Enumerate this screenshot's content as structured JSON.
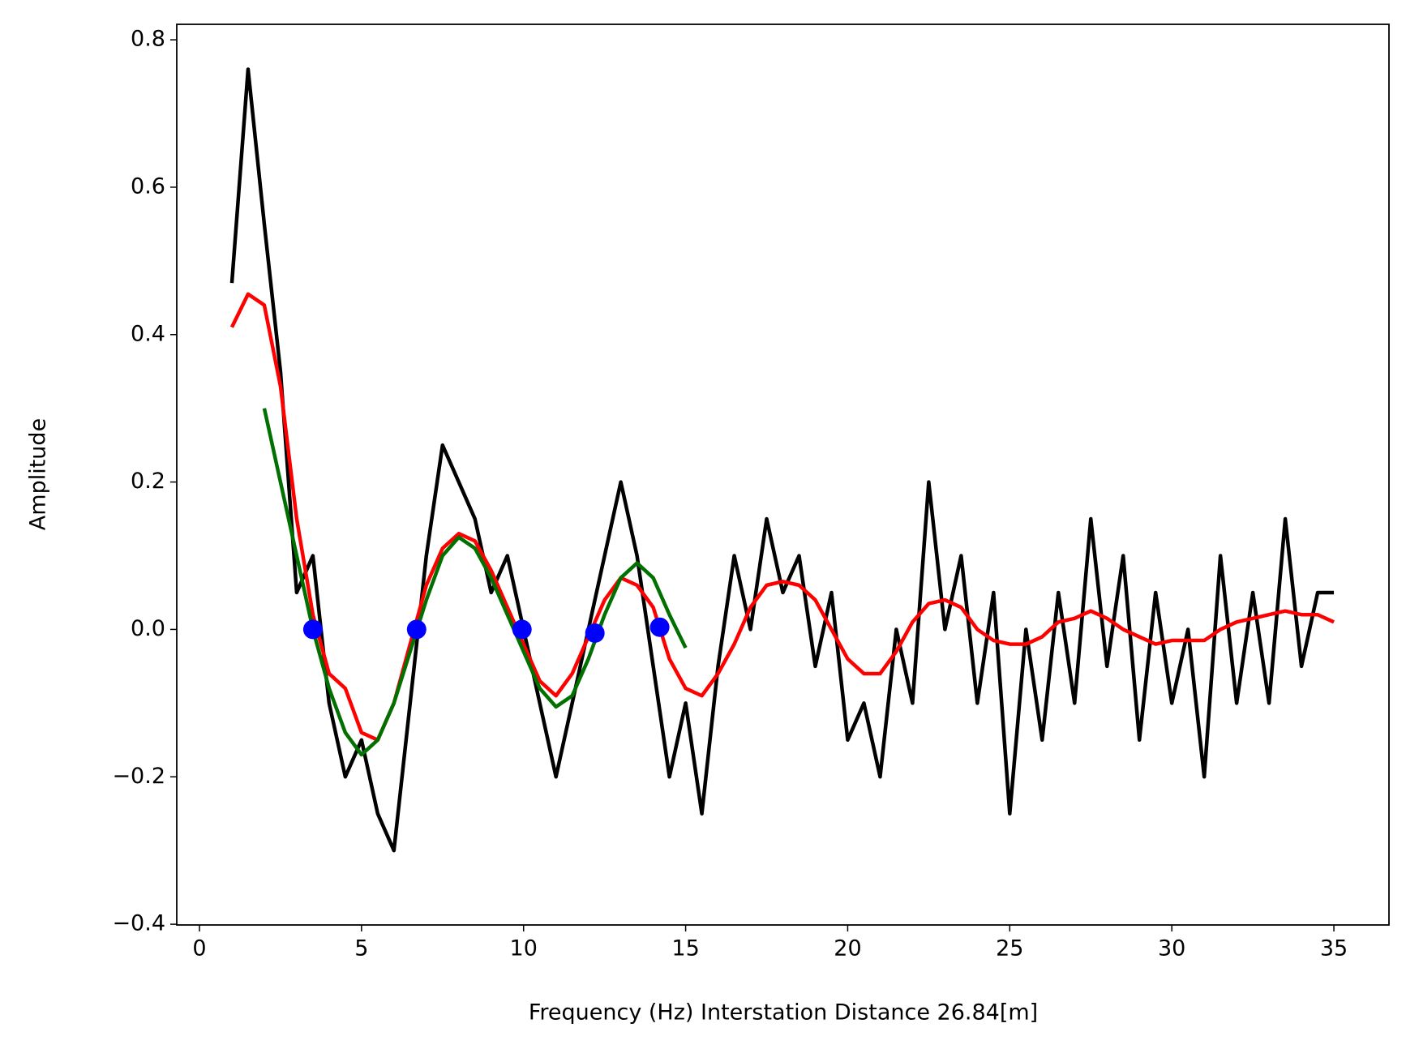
{
  "chart_data": {
    "type": "line",
    "x_label": "Frequency (Hz)  Interstation Distance 26.84[m]",
    "y_label": "Amplitude",
    "xlim": [
      -0.7,
      36.7
    ],
    "ylim": [
      -0.401,
      0.821
    ],
    "xticks": [
      0,
      5,
      10,
      15,
      20,
      25,
      30,
      35
    ],
    "yticks": [
      {
        "value": -0.4,
        "label": "−0.4"
      },
      {
        "value": -0.2,
        "label": "−0.2"
      },
      {
        "value": 0,
        "label": "0.0"
      },
      0.2,
      0.4,
      0.6,
      0.8
    ],
    "grid": false,
    "series": [
      {
        "kind": "line",
        "color": "#000000",
        "x": [
          1,
          1.5,
          2,
          2.5,
          3,
          3.5,
          4,
          4.5,
          5,
          5.5,
          6,
          6.5,
          7,
          7.5,
          8,
          8.5,
          9,
          9.5,
          10,
          10.5,
          11,
          11.5,
          12,
          12.5,
          13,
          13.5,
          14,
          14.5,
          15,
          15.5,
          16,
          16.5,
          17,
          17.5,
          18,
          18.5,
          19,
          19.5,
          20,
          20.5,
          21,
          21.5,
          22,
          22.5,
          23,
          23.5,
          24,
          24.5,
          25,
          25.5,
          26,
          26.5,
          27,
          27.5,
          28,
          28.5,
          29,
          29.5,
          30,
          30.5,
          31,
          31.5,
          32,
          32.5,
          33,
          33.5,
          34,
          34.5,
          35
        ],
        "values": [
          0.47,
          0.76,
          0.55,
          0.35,
          0.05,
          0.1,
          -0.1,
          -0.2,
          -0.15,
          -0.25,
          -0.3,
          -0.1,
          0.1,
          0.25,
          0.2,
          0.15,
          0.05,
          0.1,
          0.0,
          -0.1,
          -0.2,
          -0.1,
          0.0,
          0.1,
          0.2,
          0.1,
          -0.05,
          -0.2,
          -0.1,
          -0.25,
          -0.05,
          0.1,
          0.0,
          0.15,
          0.05,
          0.1,
          -0.05,
          0.05,
          -0.15,
          -0.1,
          -0.2,
          0.0,
          -0.1,
          0.2,
          0.0,
          0.1,
          -0.1,
          0.05,
          -0.25,
          0.0,
          -0.15,
          0.05,
          -0.1,
          0.15,
          -0.05,
          0.1,
          -0.15,
          0.05,
          -0.1,
          0.0,
          -0.2,
          0.1,
          -0.1,
          0.05,
          -0.1,
          0.15,
          -0.05,
          0.05,
          0.05
        ]
      },
      {
        "kind": "line",
        "color": "#ff0000",
        "x": [
          1,
          1.5,
          2,
          2.5,
          3,
          3.5,
          4,
          4.5,
          5,
          5.5,
          6,
          6.5,
          7,
          7.5,
          8,
          8.5,
          9,
          9.5,
          10,
          10.5,
          11,
          11.5,
          12,
          12.5,
          13,
          13.5,
          14,
          14.5,
          15,
          15.5,
          16,
          16.5,
          17,
          17.5,
          18,
          18.5,
          19,
          19.5,
          20,
          20.5,
          21,
          21.5,
          22,
          22.5,
          23,
          23.5,
          24,
          24.5,
          25,
          25.5,
          26,
          26.5,
          27,
          27.5,
          28,
          28.5,
          29,
          29.5,
          30,
          30.5,
          31,
          31.5,
          32,
          32.5,
          33,
          33.5,
          34,
          34.5,
          35
        ],
        "values": [
          0.41,
          0.455,
          0.44,
          0.33,
          0.15,
          0.02,
          -0.06,
          -0.08,
          -0.14,
          -0.15,
          -0.1,
          -0.02,
          0.06,
          0.11,
          0.13,
          0.12,
          0.08,
          0.03,
          -0.02,
          -0.07,
          -0.09,
          -0.06,
          -0.01,
          0.04,
          0.07,
          0.06,
          0.03,
          -0.04,
          -0.08,
          -0.09,
          -0.06,
          -0.02,
          0.03,
          0.06,
          0.065,
          0.06,
          0.04,
          0.0,
          -0.04,
          -0.06,
          -0.06,
          -0.03,
          0.01,
          0.035,
          0.04,
          0.03,
          0.0,
          -0.015,
          -0.02,
          -0.02,
          -0.01,
          0.01,
          0.015,
          0.025,
          0.015,
          0.0,
          -0.01,
          -0.02,
          -0.015,
          -0.015,
          -0.015,
          0.0,
          0.01,
          0.015,
          0.02,
          0.025,
          0.02,
          0.02,
          0.01
        ]
      },
      {
        "kind": "line",
        "color": "#007000",
        "x": [
          2,
          2.5,
          3,
          3.5,
          4,
          4.5,
          5,
          5.5,
          6,
          6.5,
          7,
          7.5,
          8,
          8.5,
          9,
          9.5,
          10,
          10.5,
          11,
          11.5,
          12,
          12.5,
          13,
          13.5,
          14,
          14.5,
          15
        ],
        "values": [
          0.3,
          0.2,
          0.1,
          0.0,
          -0.08,
          -0.14,
          -0.17,
          -0.15,
          -0.1,
          -0.03,
          0.04,
          0.1,
          0.125,
          0.11,
          0.07,
          0.02,
          -0.03,
          -0.08,
          -0.105,
          -0.09,
          -0.04,
          0.02,
          0.07,
          0.09,
          0.07,
          0.02,
          -0.025
        ]
      },
      {
        "kind": "points",
        "color": "#0000ff",
        "x": [
          3.5,
          6.7,
          9.95,
          12.2,
          14.2
        ],
        "values": [
          0,
          0,
          0,
          -0.005,
          0.003
        ]
      }
    ]
  }
}
